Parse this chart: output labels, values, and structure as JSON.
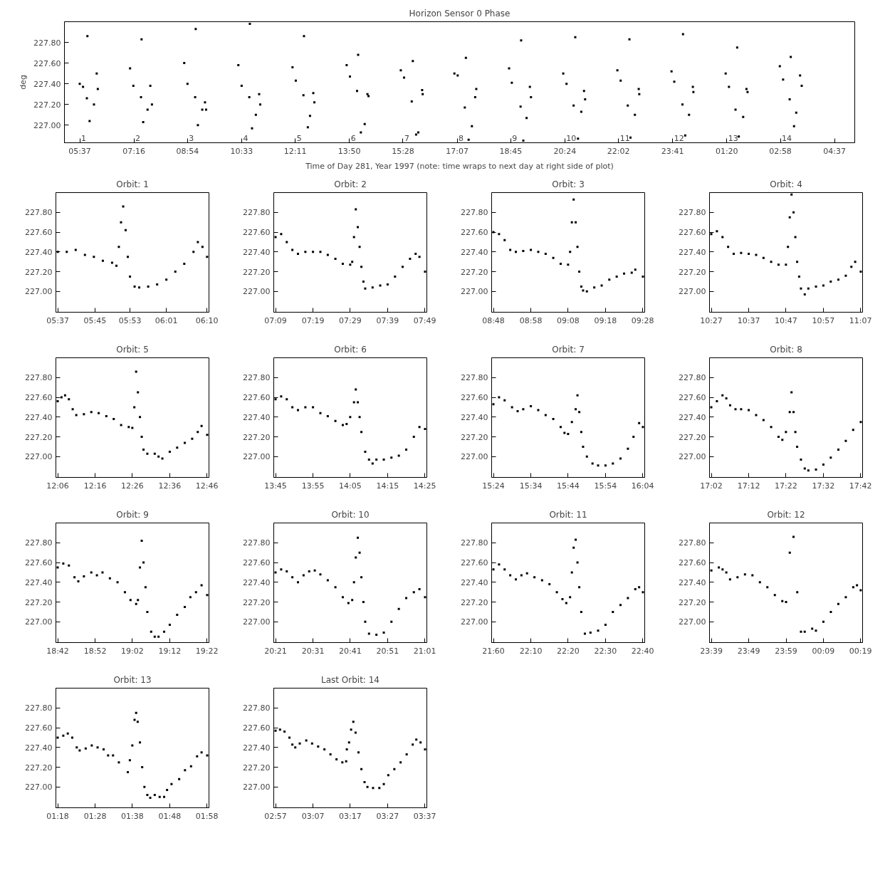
{
  "chart_data": [
    {
      "type": "scatter",
      "title": "Horizon Sensor 0 Phase",
      "xlabel": "Time of Day 281, Year 1997 (note: time wraps to next day at right side of plot)",
      "ylabel": "deg",
      "marker": "square",
      "xlim": [
        "1997-10-08T05:09",
        "1997-10-09T05:14"
      ],
      "ylim": [
        226.83,
        228.0
      ],
      "xticks": [
        {
          "value": "1997-10-08T05:37",
          "label": "05:37"
        },
        {
          "value": "1997-10-08T07:16",
          "label": "07:16"
        },
        {
          "value": "1997-10-08T08:54",
          "label": "08:54"
        },
        {
          "value": "1997-10-08T10:33",
          "label": "10:33"
        },
        {
          "value": "1997-10-08T12:11",
          "label": "12:11"
        },
        {
          "value": "1997-10-08T13:50",
          "label": "13:50"
        },
        {
          "value": "1997-10-08T15:28",
          "label": "15:28"
        },
        {
          "value": "1997-10-08T17:07",
          "label": "17:07"
        },
        {
          "value": "1997-10-08T18:45",
          "label": "18:45"
        },
        {
          "value": "1997-10-08T20:24",
          "label": "20:24"
        },
        {
          "value": "1997-10-08T22:02",
          "label": "22:02"
        },
        {
          "value": "1997-10-08T23:41",
          "label": "23:41"
        },
        {
          "value": "1997-10-09T01:20",
          "label": "01:20"
        },
        {
          "value": "1997-10-09T02:58",
          "label": "02:58"
        },
        {
          "value": "1997-10-09T04:37",
          "label": "04:37"
        }
      ],
      "yticks": [
        {
          "value": 227.0,
          "label": "227.00"
        },
        {
          "value": 227.2,
          "label": "227.20"
        },
        {
          "value": 227.4,
          "label": "227.40"
        },
        {
          "value": 227.6,
          "label": "227.60"
        },
        {
          "value": 227.8,
          "label": "227.80"
        }
      ],
      "annotations": [
        "1",
        "2",
        "3",
        "4",
        "5",
        "6",
        "7",
        "8",
        "9",
        "10",
        "11",
        "12",
        "13",
        "14"
      ],
      "x": [
        "1997-10-08T05:37",
        "1997-10-08T05:43",
        "1997-10-08T05:50",
        "1997-10-08T05:51",
        "1997-10-08T05:55",
        "1997-10-08T06:03",
        "1997-10-08T06:08",
        "1997-10-08T06:10",
        "1997-10-08T07:09",
        "1997-10-08T07:15",
        "1997-10-08T07:29",
        "1997-10-08T07:30",
        "1997-10-08T07:33",
        "1997-10-08T07:41",
        "1997-10-08T07:46",
        "1997-10-08T07:49",
        "1997-10-08T08:48",
        "1997-10-08T08:54",
        "1997-10-08T09:08",
        "1997-10-08T09:09",
        "1997-10-08T09:13",
        "1997-10-08T09:21",
        "1997-10-08T09:26",
        "1997-10-08T09:28",
        "1997-10-08T10:27",
        "1997-10-08T10:33",
        "1997-10-08T10:47",
        "1997-10-08T10:48",
        "1997-10-08T10:52",
        "1997-10-08T10:59",
        "1997-10-08T11:05",
        "1997-10-08T11:07",
        "1997-10-08T12:06",
        "1997-10-08T12:12",
        "1997-10-08T12:26",
        "1997-10-08T12:27",
        "1997-10-08T12:34",
        "1997-10-08T12:38",
        "1997-10-08T12:44",
        "1997-10-08T12:46",
        "1997-10-08T13:45",
        "1997-10-08T13:51",
        "1997-10-08T14:04",
        "1997-10-08T14:06",
        "1997-10-08T14:11",
        "1997-10-08T14:18",
        "1997-10-08T14:23",
        "1997-10-08T14:25",
        "1997-10-08T15:24",
        "1997-10-08T15:30",
        "1997-10-08T15:44",
        "1997-10-08T15:46",
        "1997-10-08T15:52",
        "1997-10-08T15:56",
        "1997-10-08T16:03",
        "1997-10-08T16:04",
        "1997-10-08T17:02",
        "1997-10-08T17:08",
        "1997-10-08T17:21",
        "1997-10-08T17:23",
        "1997-10-08T17:28",
        "1997-10-08T17:34",
        "1997-10-08T17:40",
        "1997-10-08T17:42",
        "1997-10-08T18:42",
        "1997-10-08T18:47",
        "1997-10-08T19:03",
        "1997-10-08T19:04",
        "1997-10-08T19:08",
        "1997-10-08T19:14",
        "1997-10-08T19:20",
        "1997-10-08T19:22",
        "1997-10-08T20:21",
        "1997-10-08T20:27",
        "1997-10-08T20:40",
        "1997-10-08T20:43",
        "1997-10-08T20:48",
        "1997-10-08T20:54",
        "1997-10-08T20:59",
        "1997-10-08T21:01",
        "1997-10-08T22:00",
        "1997-10-08T22:06",
        "1997-10-08T22:19",
        "1997-10-08T22:22",
        "1997-10-08T22:24",
        "1997-10-08T22:32",
        "1997-10-08T22:39",
        "1997-10-08T22:40",
        "1997-10-08T23:39",
        "1997-10-08T23:44",
        "1997-10-08T23:59",
        "1997-10-09T00:00",
        "1997-10-09T00:04",
        "1997-10-09T00:11",
        "1997-10-09T00:18",
        "1997-10-09T00:19",
        "1997-10-09T01:18",
        "1997-10-09T01:24",
        "1997-10-09T01:36",
        "1997-10-09T01:39",
        "1997-10-09T01:42",
        "1997-10-09T01:50",
        "1997-10-09T01:56",
        "1997-10-09T01:58",
        "1997-10-09T02:57",
        "1997-10-09T03:03",
        "1997-10-09T03:15",
        "1997-10-09T03:17",
        "1997-10-09T03:23",
        "1997-10-09T03:27",
        "1997-10-09T03:34",
        "1997-10-09T03:37"
      ],
      "series": [
        {
          "color": "#000000",
          "values": [
            227.4,
            227.37,
            227.26,
            227.86,
            227.04,
            227.2,
            227.5,
            227.35,
            227.55,
            227.38,
            227.27,
            227.83,
            227.03,
            227.15,
            227.38,
            227.2,
            227.6,
            227.4,
            227.27,
            227.93,
            227.0,
            227.15,
            227.22,
            227.15,
            227.58,
            227.38,
            227.27,
            227.98,
            226.97,
            227.1,
            227.3,
            227.2,
            227.56,
            227.43,
            227.29,
            227.86,
            226.98,
            227.09,
            227.31,
            227.22,
            227.58,
            227.47,
            227.33,
            227.68,
            226.93,
            227.01,
            227.3,
            227.28,
            227.53,
            227.46,
            227.23,
            227.62,
            226.91,
            226.93,
            227.34,
            227.3,
            227.5,
            227.48,
            227.17,
            227.65,
            226.86,
            226.99,
            227.27,
            227.35,
            227.55,
            227.41,
            227.18,
            227.82,
            226.85,
            227.07,
            227.37,
            227.27,
            227.5,
            227.4,
            227.19,
            227.85,
            226.87,
            227.13,
            227.33,
            227.25,
            227.53,
            227.43,
            227.19,
            227.83,
            226.88,
            227.1,
            227.35,
            227.3,
            227.52,
            227.42,
            227.2,
            227.88,
            226.9,
            227.1,
            227.37,
            227.32,
            227.5,
            227.37,
            227.15,
            227.75,
            226.89,
            227.08,
            227.35,
            227.32,
            227.57,
            227.44,
            227.25,
            227.66,
            226.99,
            227.12,
            227.48,
            227.38
          ]
        }
      ]
    },
    {
      "type": "scatter",
      "title": "Orbit: 1",
      "marker": "square",
      "xlim": [
        5.61,
        6.174
      ],
      "ylim": [
        226.79,
        228.0
      ],
      "xticks": [
        {
          "value": 5.617,
          "label": "05:37"
        },
        {
          "value": 5.754,
          "label": "05:45"
        },
        {
          "value": 5.883,
          "label": "05:53"
        },
        {
          "value": 6.017,
          "label": "06:01"
        },
        {
          "value": 6.167,
          "label": "06:10"
        }
      ],
      "yticks": [
        {
          "value": 227.0,
          "label": "227.00"
        },
        {
          "value": 227.2,
          "label": "227.20"
        },
        {
          "value": 227.4,
          "label": "227.40"
        },
        {
          "value": 227.6,
          "label": "227.60"
        },
        {
          "value": 227.8,
          "label": "227.80"
        }
      ],
      "x": [
        5.617,
        5.65,
        5.683,
        5.717,
        5.75,
        5.783,
        5.817,
        5.833,
        5.842,
        5.85,
        5.858,
        5.867,
        5.875,
        5.883,
        5.9,
        5.917,
        5.95,
        5.983,
        6.017,
        6.05,
        6.083,
        6.117,
        6.133,
        6.15,
        6.167
      ],
      "series": [
        {
          "color": "#000000",
          "values": [
            227.4,
            227.4,
            227.42,
            227.37,
            227.35,
            227.31,
            227.29,
            227.26,
            227.45,
            227.7,
            227.86,
            227.62,
            227.35,
            227.15,
            227.05,
            227.04,
            227.05,
            227.07,
            227.12,
            227.2,
            227.28,
            227.4,
            227.5,
            227.45,
            227.35
          ]
        }
      ]
    },
    {
      "type": "scatter",
      "title": "Orbit: 2",
      "marker": "square",
      "xlim": [
        7.142,
        7.825
      ],
      "ylim": [
        226.79,
        228.0
      ],
      "xticks": [
        {
          "value": 7.15,
          "label": "07:09"
        },
        {
          "value": 7.317,
          "label": "07:19"
        },
        {
          "value": 7.483,
          "label": "07:29"
        },
        {
          "value": 7.65,
          "label": "07:39"
        },
        {
          "value": 7.817,
          "label": "07:49"
        }
      ],
      "yticks": [
        {
          "value": 227.0,
          "label": "227.00"
        },
        {
          "value": 227.2,
          "label": "227.20"
        },
        {
          "value": 227.4,
          "label": "227.40"
        },
        {
          "value": 227.6,
          "label": "227.60"
        },
        {
          "value": 227.8,
          "label": "227.80"
        }
      ],
      "x": [
        7.15,
        7.175,
        7.2,
        7.225,
        7.25,
        7.283,
        7.317,
        7.35,
        7.383,
        7.417,
        7.45,
        7.483,
        7.492,
        7.5,
        7.508,
        7.517,
        7.525,
        7.533,
        7.542,
        7.55,
        7.583,
        7.617,
        7.65,
        7.683,
        7.717,
        7.75,
        7.775,
        7.792,
        7.817
      ],
      "series": [
        {
          "color": "#000000",
          "values": [
            227.55,
            227.58,
            227.5,
            227.42,
            227.38,
            227.4,
            227.4,
            227.4,
            227.37,
            227.33,
            227.28,
            227.27,
            227.3,
            227.55,
            227.83,
            227.65,
            227.45,
            227.25,
            227.1,
            227.03,
            227.04,
            227.06,
            227.07,
            227.15,
            227.25,
            227.33,
            227.38,
            227.35,
            227.2
          ]
        }
      ]
    },
    {
      "type": "scatter",
      "title": "Orbit: 3",
      "marker": "square",
      "xlim": [
        8.792,
        9.475
      ],
      "ylim": [
        226.79,
        228.0
      ],
      "xticks": [
        {
          "value": 8.8,
          "label": "08:48"
        },
        {
          "value": 8.967,
          "label": "08:58"
        },
        {
          "value": 9.133,
          "label": "09:08"
        },
        {
          "value": 9.3,
          "label": "09:18"
        },
        {
          "value": 9.467,
          "label": "09:28"
        }
      ],
      "yticks": [
        {
          "value": 227.0,
          "label": "227.00"
        },
        {
          "value": 227.2,
          "label": "227.20"
        },
        {
          "value": 227.4,
          "label": "227.40"
        },
        {
          "value": 227.6,
          "label": "227.60"
        },
        {
          "value": 227.8,
          "label": "227.80"
        }
      ],
      "x": [
        8.8,
        8.825,
        8.85,
        8.875,
        8.9,
        8.933,
        8.967,
        9.0,
        9.033,
        9.067,
        9.1,
        9.133,
        9.142,
        9.15,
        9.158,
        9.167,
        9.175,
        9.183,
        9.192,
        9.2,
        9.217,
        9.25,
        9.283,
        9.317,
        9.35,
        9.383,
        9.417,
        9.433,
        9.467
      ],
      "series": [
        {
          "color": "#000000",
          "values": [
            227.6,
            227.58,
            227.52,
            227.42,
            227.4,
            227.41,
            227.42,
            227.4,
            227.38,
            227.34,
            227.28,
            227.27,
            227.4,
            227.7,
            227.93,
            227.7,
            227.45,
            227.2,
            227.05,
            227.01,
            227.0,
            227.04,
            227.06,
            227.12,
            227.15,
            227.18,
            227.19,
            227.22,
            227.15
          ]
        }
      ]
    },
    {
      "type": "scatter",
      "title": "Orbit: 4",
      "marker": "square",
      "xlim": [
        10.442,
        11.125
      ],
      "ylim": [
        226.79,
        228.0
      ],
      "xticks": [
        {
          "value": 10.45,
          "label": "10:27"
        },
        {
          "value": 10.617,
          "label": "10:37"
        },
        {
          "value": 10.783,
          "label": "10:47"
        },
        {
          "value": 10.95,
          "label": "10:57"
        },
        {
          "value": 11.117,
          "label": "11:07"
        }
      ],
      "yticks": [
        {
          "value": 227.0,
          "label": "227.00"
        },
        {
          "value": 227.2,
          "label": "227.20"
        },
        {
          "value": 227.4,
          "label": "227.40"
        },
        {
          "value": 227.6,
          "label": "227.60"
        },
        {
          "value": 227.8,
          "label": "227.80"
        }
      ],
      "x": [
        10.45,
        10.475,
        10.5,
        10.525,
        10.55,
        10.583,
        10.617,
        10.65,
        10.683,
        10.717,
        10.75,
        10.783,
        10.792,
        10.8,
        10.808,
        10.817,
        10.825,
        10.833,
        10.842,
        10.85,
        10.867,
        10.883,
        10.917,
        10.95,
        10.983,
        11.017,
        11.05,
        11.075,
        11.092,
        11.117
      ],
      "series": [
        {
          "color": "#000000",
          "values": [
            227.58,
            227.61,
            227.55,
            227.45,
            227.38,
            227.39,
            227.38,
            227.37,
            227.34,
            227.3,
            227.27,
            227.27,
            227.45,
            227.75,
            227.98,
            227.8,
            227.55,
            227.3,
            227.15,
            227.03,
            226.97,
            227.03,
            227.05,
            227.06,
            227.1,
            227.12,
            227.16,
            227.25,
            227.3,
            227.2
          ]
        }
      ]
    },
    {
      "type": "scatter",
      "title": "Orbit: 5",
      "marker": "square",
      "xlim": [
        12.092,
        12.775
      ],
      "ylim": [
        226.79,
        228.0
      ],
      "xticks": [
        {
          "value": 12.1,
          "label": "12:06"
        },
        {
          "value": 12.267,
          "label": "12:16"
        },
        {
          "value": 12.433,
          "label": "12:26"
        },
        {
          "value": 12.6,
          "label": "12:36"
        },
        {
          "value": 12.767,
          "label": "12:46"
        }
      ],
      "yticks": [
        {
          "value": 227.0,
          "label": "227.00"
        },
        {
          "value": 227.2,
          "label": "227.20"
        },
        {
          "value": 227.4,
          "label": "227.40"
        },
        {
          "value": 227.6,
          "label": "227.60"
        },
        {
          "value": 227.8,
          "label": "227.80"
        }
      ],
      "x": [
        12.1,
        12.117,
        12.133,
        12.15,
        12.167,
        12.183,
        12.217,
        12.25,
        12.283,
        12.317,
        12.35,
        12.383,
        12.417,
        12.433,
        12.442,
        12.45,
        12.458,
        12.467,
        12.475,
        12.483,
        12.5,
        12.533,
        12.55,
        12.567,
        12.6,
        12.633,
        12.667,
        12.7,
        12.725,
        12.742,
        12.767
      ],
      "series": [
        {
          "color": "#000000",
          "values": [
            227.56,
            227.6,
            227.62,
            227.58,
            227.48,
            227.42,
            227.43,
            227.45,
            227.44,
            227.41,
            227.38,
            227.32,
            227.3,
            227.29,
            227.5,
            227.86,
            227.65,
            227.4,
            227.2,
            227.07,
            227.03,
            227.03,
            227.0,
            226.98,
            227.05,
            227.09,
            227.14,
            227.18,
            227.25,
            227.31,
            227.22
          ]
        }
      ]
    },
    {
      "type": "scatter",
      "title": "Orbit: 6",
      "marker": "square",
      "xlim": [
        13.742,
        14.425
      ],
      "ylim": [
        226.79,
        228.0
      ],
      "xticks": [
        {
          "value": 13.75,
          "label": "13:45"
        },
        {
          "value": 13.917,
          "label": "13:55"
        },
        {
          "value": 14.083,
          "label": "14:05"
        },
        {
          "value": 14.25,
          "label": "14:15"
        },
        {
          "value": 14.417,
          "label": "14:25"
        }
      ],
      "yticks": [
        {
          "value": 227.0,
          "label": "227.00"
        },
        {
          "value": 227.2,
          "label": "227.20"
        },
        {
          "value": 227.4,
          "label": "227.40"
        },
        {
          "value": 227.6,
          "label": "227.60"
        },
        {
          "value": 227.8,
          "label": "227.80"
        }
      ],
      "x": [
        13.75,
        13.775,
        13.8,
        13.825,
        13.85,
        13.883,
        13.917,
        13.95,
        13.983,
        14.017,
        14.05,
        14.067,
        14.083,
        14.1,
        14.108,
        14.117,
        14.125,
        14.133,
        14.15,
        14.167,
        14.183,
        14.2,
        14.233,
        14.267,
        14.3,
        14.333,
        14.367,
        14.392,
        14.417
      ],
      "series": [
        {
          "color": "#000000",
          "values": [
            227.58,
            227.61,
            227.58,
            227.5,
            227.47,
            227.5,
            227.5,
            227.44,
            227.41,
            227.36,
            227.32,
            227.33,
            227.4,
            227.55,
            227.68,
            227.55,
            227.4,
            227.25,
            227.05,
            226.97,
            226.93,
            226.97,
            226.97,
            226.99,
            227.01,
            227.07,
            227.2,
            227.3,
            227.28
          ]
        }
      ]
    },
    {
      "type": "scatter",
      "title": "Orbit: 7",
      "marker": "square",
      "xlim": [
        15.392,
        16.075
      ],
      "ylim": [
        226.79,
        228.0
      ],
      "xticks": [
        {
          "value": 15.4,
          "label": "15:24"
        },
        {
          "value": 15.567,
          "label": "15:34"
        },
        {
          "value": 15.733,
          "label": "15:44"
        },
        {
          "value": 15.9,
          "label": "15:54"
        },
        {
          "value": 16.067,
          "label": "16:04"
        }
      ],
      "yticks": [
        {
          "value": 227.0,
          "label": "227.00"
        },
        {
          "value": 227.2,
          "label": "227.20"
        },
        {
          "value": 227.4,
          "label": "227.40"
        },
        {
          "value": 227.6,
          "label": "227.60"
        },
        {
          "value": 227.8,
          "label": "227.80"
        }
      ],
      "x": [
        15.4,
        15.425,
        15.45,
        15.483,
        15.508,
        15.533,
        15.567,
        15.6,
        15.633,
        15.667,
        15.7,
        15.717,
        15.733,
        15.75,
        15.767,
        15.775,
        15.783,
        15.792,
        15.8,
        15.817,
        15.842,
        15.867,
        15.9,
        15.933,
        15.967,
        16.0,
        16.025,
        16.05,
        16.067
      ],
      "series": [
        {
          "color": "#000000",
          "values": [
            227.53,
            227.6,
            227.57,
            227.5,
            227.46,
            227.48,
            227.51,
            227.47,
            227.42,
            227.38,
            227.3,
            227.24,
            227.23,
            227.35,
            227.48,
            227.62,
            227.45,
            227.25,
            227.1,
            227.0,
            226.93,
            226.91,
            226.91,
            226.93,
            226.98,
            227.08,
            227.2,
            227.34,
            227.3
          ]
        }
      ]
    },
    {
      "type": "scatter",
      "title": "Orbit: 8",
      "marker": "square",
      "xlim": [
        17.025,
        17.708
      ],
      "ylim": [
        226.79,
        228.0
      ],
      "xticks": [
        {
          "value": 17.033,
          "label": "17:02"
        },
        {
          "value": 17.2,
          "label": "17:12"
        },
        {
          "value": 17.366,
          "label": "17:22"
        },
        {
          "value": 17.533,
          "label": "17:32"
        },
        {
          "value": 17.7,
          "label": "17:42"
        }
      ],
      "yticks": [
        {
          "value": 227.0,
          "label": "227.00"
        },
        {
          "value": 227.2,
          "label": "227.20"
        },
        {
          "value": 227.4,
          "label": "227.40"
        },
        {
          "value": 227.6,
          "label": "227.60"
        },
        {
          "value": 227.8,
          "label": "227.80"
        }
      ],
      "x": [
        17.033,
        17.058,
        17.083,
        17.1,
        17.117,
        17.141,
        17.166,
        17.2,
        17.233,
        17.266,
        17.3,
        17.333,
        17.35,
        17.366,
        17.383,
        17.391,
        17.4,
        17.408,
        17.416,
        17.433,
        17.45,
        17.466,
        17.5,
        17.533,
        17.566,
        17.6,
        17.633,
        17.666,
        17.7
      ],
      "series": [
        {
          "color": "#000000",
          "values": [
            227.5,
            227.56,
            227.62,
            227.59,
            227.52,
            227.48,
            227.48,
            227.47,
            227.42,
            227.37,
            227.3,
            227.2,
            227.17,
            227.25,
            227.45,
            227.65,
            227.45,
            227.25,
            227.1,
            226.97,
            226.88,
            226.86,
            226.87,
            226.92,
            226.99,
            227.07,
            227.16,
            227.27,
            227.35
          ]
        }
      ]
    },
    {
      "type": "scatter",
      "title": "Orbit: 9",
      "marker": "square",
      "xlim": [
        18.692,
        19.375
      ],
      "ylim": [
        226.79,
        228.0
      ],
      "xticks": [
        {
          "value": 18.7,
          "label": "18:42"
        },
        {
          "value": 18.867,
          "label": "18:52"
        },
        {
          "value": 19.033,
          "label": "19:02"
        },
        {
          "value": 19.2,
          "label": "19:12"
        },
        {
          "value": 19.367,
          "label": "19:22"
        }
      ],
      "yticks": [
        {
          "value": 227.0,
          "label": "227.00"
        },
        {
          "value": 227.2,
          "label": "227.20"
        },
        {
          "value": 227.4,
          "label": "227.40"
        },
        {
          "value": 227.6,
          "label": "227.60"
        },
        {
          "value": 227.8,
          "label": "227.80"
        }
      ],
      "x": [
        18.7,
        18.725,
        18.75,
        18.775,
        18.792,
        18.817,
        18.85,
        18.875,
        18.9,
        18.933,
        18.967,
        19.0,
        19.025,
        19.05,
        19.058,
        19.067,
        19.075,
        19.083,
        19.092,
        19.1,
        19.117,
        19.133,
        19.15,
        19.175,
        19.2,
        19.233,
        19.267,
        19.292,
        19.317,
        19.342,
        19.367
      ],
      "series": [
        {
          "color": "#000000",
          "values": [
            227.55,
            227.59,
            227.57,
            227.45,
            227.41,
            227.46,
            227.5,
            227.47,
            227.5,
            227.44,
            227.4,
            227.3,
            227.22,
            227.18,
            227.22,
            227.55,
            227.82,
            227.6,
            227.35,
            227.1,
            226.9,
            226.85,
            226.85,
            226.9,
            226.97,
            227.07,
            227.15,
            227.25,
            227.3,
            227.37,
            227.27
          ]
        }
      ]
    },
    {
      "type": "scatter",
      "title": "Orbit: 10",
      "marker": "square",
      "xlim": [
        20.342,
        21.025
      ],
      "ylim": [
        226.79,
        228.0
      ],
      "xticks": [
        {
          "value": 20.35,
          "label": "20:21"
        },
        {
          "value": 20.517,
          "label": "20:31"
        },
        {
          "value": 20.683,
          "label": "20:41"
        },
        {
          "value": 20.85,
          "label": "20:51"
        },
        {
          "value": 21.017,
          "label": "21:01"
        }
      ],
      "yticks": [
        {
          "value": 227.0,
          "label": "227.00"
        },
        {
          "value": 227.2,
          "label": "227.20"
        },
        {
          "value": 227.4,
          "label": "227.40"
        },
        {
          "value": 227.6,
          "label": "227.60"
        },
        {
          "value": 227.8,
          "label": "227.80"
        }
      ],
      "x": [
        20.35,
        20.375,
        20.4,
        20.425,
        20.45,
        20.475,
        20.5,
        20.525,
        20.55,
        20.583,
        20.617,
        20.65,
        20.675,
        20.692,
        20.7,
        20.708,
        20.717,
        20.725,
        20.733,
        20.742,
        20.75,
        20.767,
        20.8,
        20.833,
        20.867,
        20.9,
        20.933,
        20.967,
        20.992,
        21.017
      ],
      "series": [
        {
          "color": "#000000",
          "values": [
            227.5,
            227.53,
            227.51,
            227.45,
            227.4,
            227.47,
            227.51,
            227.52,
            227.48,
            227.42,
            227.35,
            227.25,
            227.19,
            227.22,
            227.4,
            227.65,
            227.85,
            227.7,
            227.45,
            227.2,
            227.0,
            226.88,
            226.87,
            226.89,
            227.0,
            227.13,
            227.24,
            227.3,
            227.33,
            227.25
          ]
        }
      ]
    },
    {
      "type": "scatter",
      "title": "Orbit: 11",
      "marker": "square",
      "xlim": [
        21.992,
        22.675
      ],
      "ylim": [
        226.79,
        228.0
      ],
      "xticks": [
        {
          "value": 22.0,
          "label": "21:60"
        },
        {
          "value": 22.167,
          "label": "22:10"
        },
        {
          "value": 22.333,
          "label": "22:20"
        },
        {
          "value": 22.5,
          "label": "22:30"
        },
        {
          "value": 22.667,
          "label": "22:40"
        }
      ],
      "yticks": [
        {
          "value": 227.0,
          "label": "227.00"
        },
        {
          "value": 227.2,
          "label": "227.20"
        },
        {
          "value": 227.4,
          "label": "227.40"
        },
        {
          "value": 227.6,
          "label": "227.60"
        },
        {
          "value": 227.8,
          "label": "227.80"
        }
      ],
      "x": [
        22.0,
        22.025,
        22.05,
        22.075,
        22.1,
        22.125,
        22.15,
        22.183,
        22.217,
        22.25,
        22.283,
        22.308,
        22.325,
        22.342,
        22.35,
        22.358,
        22.367,
        22.375,
        22.383,
        22.392,
        22.408,
        22.433,
        22.467,
        22.5,
        22.533,
        22.567,
        22.6,
        22.633,
        22.65,
        22.667
      ],
      "series": [
        {
          "color": "#000000",
          "values": [
            227.53,
            227.58,
            227.53,
            227.47,
            227.43,
            227.47,
            227.49,
            227.45,
            227.42,
            227.38,
            227.3,
            227.23,
            227.19,
            227.25,
            227.5,
            227.75,
            227.83,
            227.6,
            227.35,
            227.1,
            226.88,
            226.89,
            226.91,
            226.97,
            227.1,
            227.17,
            227.24,
            227.33,
            227.35,
            227.3
          ]
        }
      ]
    },
    {
      "type": "scatter",
      "title": "Orbit: 12",
      "marker": "square",
      "xlim": [
        "1997-10-08T23:38:30",
        "1997-10-09T00:19:30"
      ],
      "ylim": [
        226.79,
        228.0
      ],
      "xticks": [
        {
          "value": "1997-10-08T23:39",
          "label": "23:39"
        },
        {
          "value": "1997-10-08T23:49",
          "label": "23:49"
        },
        {
          "value": "1997-10-08T23:59",
          "label": "23:59"
        },
        {
          "value": "1997-10-09T00:09",
          "label": "00:09"
        },
        {
          "value": "1997-10-09T00:19",
          "label": "00:19"
        }
      ],
      "yticks": [
        {
          "value": 227.0,
          "label": "227.00"
        },
        {
          "value": 227.2,
          "label": "227.20"
        },
        {
          "value": 227.4,
          "label": "227.40"
        },
        {
          "value": 227.6,
          "label": "227.60"
        },
        {
          "value": 227.8,
          "label": "227.80"
        }
      ],
      "x": [
        "1997-10-08T23:39",
        "1997-10-08T23:41",
        "1997-10-08T23:42",
        "1997-10-08T23:43",
        "1997-10-08T23:44",
        "1997-10-08T23:46",
        "1997-10-08T23:48",
        "1997-10-08T23:50",
        "1997-10-08T23:52",
        "1997-10-08T23:54",
        "1997-10-08T23:56",
        "1997-10-08T23:58",
        "1997-10-08T23:59",
        "1997-10-09T00:00",
        "1997-10-09T00:01",
        "1997-10-09T00:02",
        "1997-10-09T00:03",
        "1997-10-09T00:04",
        "1997-10-09T00:06",
        "1997-10-09T00:07",
        "1997-10-09T00:09",
        "1997-10-09T00:11",
        "1997-10-09T00:13",
        "1997-10-09T00:15",
        "1997-10-09T00:17",
        "1997-10-09T00:18",
        "1997-10-09T00:19"
      ],
      "series": [
        {
          "color": "#000000",
          "values": [
            227.52,
            227.55,
            227.53,
            227.5,
            227.43,
            227.45,
            227.48,
            227.47,
            227.4,
            227.35,
            227.27,
            227.21,
            227.2,
            227.7,
            227.86,
            227.3,
            226.9,
            226.9,
            226.93,
            226.91,
            227.0,
            227.1,
            227.18,
            227.25,
            227.35,
            227.37,
            227.32
          ]
        }
      ]
    },
    {
      "type": "scatter",
      "title": "Orbit: 13",
      "marker": "square",
      "xlim": [
        1.292,
        1.975
      ],
      "ylim": [
        226.79,
        228.0
      ],
      "xticks": [
        {
          "value": 1.3,
          "label": "01:18"
        },
        {
          "value": 1.467,
          "label": "01:28"
        },
        {
          "value": 1.633,
          "label": "01:38"
        },
        {
          "value": 1.8,
          "label": "01:48"
        },
        {
          "value": 1.967,
          "label": "01:58"
        }
      ],
      "yticks": [
        {
          "value": 227.0,
          "label": "227.00"
        },
        {
          "value": 227.2,
          "label": "227.20"
        },
        {
          "value": 227.4,
          "label": "227.40"
        },
        {
          "value": 227.6,
          "label": "227.60"
        },
        {
          "value": 227.8,
          "label": "227.80"
        }
      ],
      "x": [
        1.3,
        1.325,
        1.345,
        1.365,
        1.385,
        1.398,
        1.425,
        1.452,
        1.478,
        1.505,
        1.525,
        1.547,
        1.573,
        1.613,
        1.622,
        1.633,
        1.643,
        1.65,
        1.657,
        1.667,
        1.677,
        1.687,
        1.7,
        1.713,
        1.733,
        1.755,
        1.775,
        1.788,
        1.808,
        1.842,
        1.868,
        1.895,
        1.922,
        1.942,
        1.967
      ],
      "series": [
        {
          "color": "#000000",
          "values": [
            227.5,
            227.52,
            227.54,
            227.5,
            227.4,
            227.37,
            227.39,
            227.42,
            227.4,
            227.38,
            227.32,
            227.32,
            227.25,
            227.15,
            227.27,
            227.42,
            227.68,
            227.75,
            227.66,
            227.45,
            227.2,
            227.0,
            226.92,
            226.89,
            226.92,
            226.9,
            226.9,
            226.97,
            227.03,
            227.08,
            227.17,
            227.21,
            227.31,
            227.35,
            227.32
          ]
        }
      ]
    },
    {
      "type": "scatter",
      "title": "Last Orbit: 14",
      "marker": "square",
      "xlim": [
        2.942,
        3.625
      ],
      "ylim": [
        226.79,
        228.0
      ],
      "xticks": [
        {
          "value": 2.95,
          "label": "02:57"
        },
        {
          "value": 3.117,
          "label": "03:07"
        },
        {
          "value": 3.283,
          "label": "03:17"
        },
        {
          "value": 3.45,
          "label": "03:27"
        },
        {
          "value": 3.617,
          "label": "03:37"
        }
      ],
      "yticks": [
        {
          "value": 227.0,
          "label": "227.00"
        },
        {
          "value": 227.2,
          "label": "227.20"
        },
        {
          "value": 227.4,
          "label": "227.40"
        },
        {
          "value": 227.6,
          "label": "227.60"
        },
        {
          "value": 227.8,
          "label": "227.80"
        }
      ],
      "x": [
        2.95,
        2.97,
        2.99,
        3.012,
        3.025,
        3.038,
        3.058,
        3.087,
        3.113,
        3.14,
        3.168,
        3.195,
        3.222,
        3.248,
        3.265,
        3.268,
        3.278,
        3.287,
        3.297,
        3.307,
        3.32,
        3.333,
        3.347,
        3.36,
        3.385,
        3.413,
        3.433,
        3.453,
        3.48,
        3.508,
        3.535,
        3.562,
        3.578,
        3.597,
        3.617
      ],
      "series": [
        {
          "color": "#000000",
          "values": [
            227.57,
            227.58,
            227.56,
            227.5,
            227.43,
            227.4,
            227.44,
            227.47,
            227.44,
            227.41,
            227.38,
            227.33,
            227.28,
            227.25,
            227.26,
            227.38,
            227.45,
            227.58,
            227.66,
            227.55,
            227.35,
            227.18,
            227.05,
            227.0,
            226.99,
            226.99,
            227.03,
            227.12,
            227.18,
            227.25,
            227.33,
            227.43,
            227.48,
            227.45,
            227.38
          ]
        }
      ]
    }
  ]
}
